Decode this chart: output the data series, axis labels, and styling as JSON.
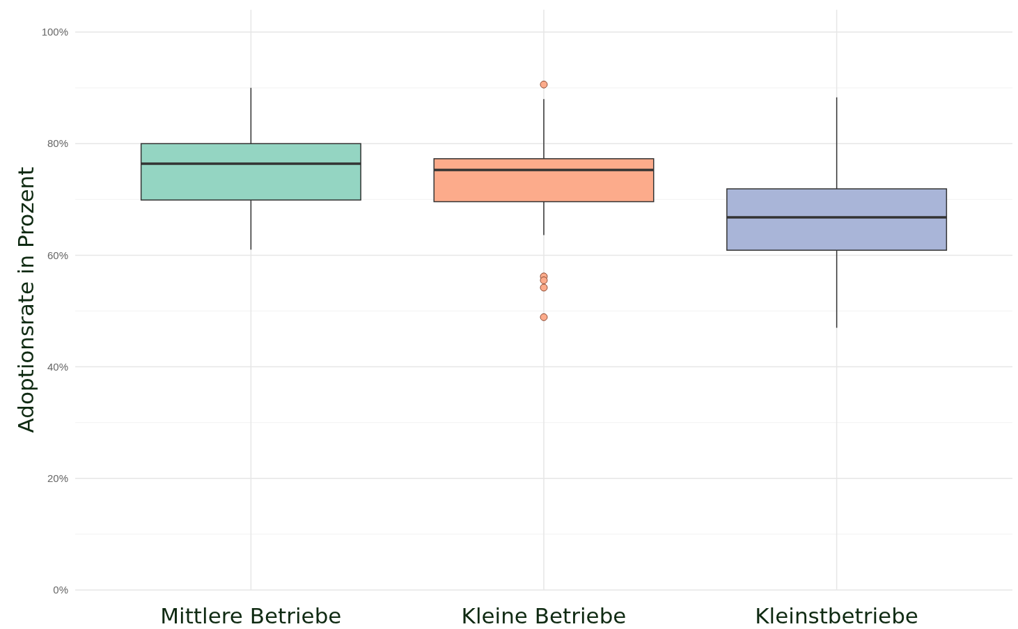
{
  "chart_data": {
    "type": "box",
    "ylabel": "Adoptionsrate in Prozent",
    "categories": [
      "Mittlere Betriebe",
      "Kleine Betriebe",
      "Kleinstbetriebe"
    ],
    "boxes": [
      {
        "low": 61,
        "q1": 69.9,
        "median": 76.4,
        "q3": 80,
        "high": 90
      },
      {
        "low": 63.6,
        "q1": 69.6,
        "median": 75.3,
        "q3": 77.3,
        "high": 88,
        "outliers": [
          90.6,
          56.2,
          55.5,
          54.2,
          48.9
        ]
      },
      {
        "low": 47,
        "q1": 60.9,
        "median": 66.8,
        "q3": 71.9,
        "high": 88.3
      }
    ],
    "colors": [
      "#94d5c2",
      "#fcab8b",
      "#a9b5d8"
    ],
    "ylim": [
      0,
      104
    ],
    "yticks": [
      {
        "value": 0,
        "label": "0%"
      },
      {
        "value": 20,
        "label": "20%"
      },
      {
        "value": 40,
        "label": "40%"
      },
      {
        "value": 60,
        "label": "60%"
      },
      {
        "value": 80,
        "label": "80%"
      },
      {
        "value": 100,
        "label": "100%"
      }
    ],
    "grid": true
  }
}
